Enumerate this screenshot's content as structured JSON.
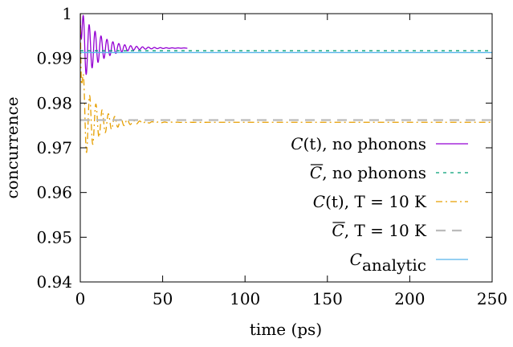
{
  "chart_data": {
    "type": "line",
    "xlabel": "time (ps)",
    "ylabel": "concurrence",
    "xlim": [
      0,
      250
    ],
    "ylim": [
      0.94,
      1.0
    ],
    "xticks": [
      "0",
      "50",
      "100",
      "150",
      "200",
      "250"
    ],
    "yticks": [
      "0.94",
      "0.95",
      "0.96",
      "0.97",
      "0.98",
      "0.99",
      "1"
    ],
    "grid": false,
    "legend_position": "bottom-right",
    "series": [
      {
        "name": "C(t), no phonons",
        "kind": "oscillation",
        "color": "#9400d3",
        "dash": "solid",
        "start": 1.0,
        "steady": 0.9923,
        "amplitude": 0.0085,
        "period_ps": 3.6,
        "decay_ps": 11,
        "x_end": 65,
        "sample_points": [
          {
            "x": 0,
            "y": 1.0
          },
          {
            "x": 8,
            "y": 0.9985
          },
          {
            "x": 20,
            "y": 0.9932
          },
          {
            "x": 40,
            "y": 0.9924
          },
          {
            "x": 65,
            "y": 0.9923
          }
        ]
      },
      {
        "name": "C̄, no phonons",
        "kind": "constant",
        "color": "#009e73",
        "dash": "4,5",
        "value": 0.9917
      },
      {
        "name": "C(t), T = 10 K",
        "kind": "oscillation",
        "color": "#e69f00",
        "dash": "8,4,2,4",
        "start": 1.0,
        "steady": 0.9757,
        "amplitude": 0.0105,
        "period_ps": 3.8,
        "decay_ps": 10,
        "x_end": 250,
        "sample_points": [
          {
            "x": 0,
            "y": 1.0
          },
          {
            "x": 5,
            "y": 0.968
          },
          {
            "x": 10,
            "y": 0.983
          },
          {
            "x": 30,
            "y": 0.9765
          },
          {
            "x": 250,
            "y": 0.9757
          }
        ]
      },
      {
        "name": "C̄, T = 10 K",
        "kind": "constant",
        "color": "#bbbbbb",
        "dash": "12,8",
        "value": 0.9762
      },
      {
        "name": "C_analytic",
        "kind": "constant",
        "color": "#56b4e9",
        "dash": "solid",
        "value": 0.9913
      }
    ],
    "legend_labels": [
      {
        "main": "C",
        "arg": "(t)",
        "rest": ", no phonons",
        "bar": false
      },
      {
        "main": "C",
        "arg": "",
        "rest": ", no phonons",
        "bar": true
      },
      {
        "main": "C",
        "arg": "(t)",
        "rest": ", T = 10 K",
        "bar": false
      },
      {
        "main": "C",
        "arg": "",
        "rest": ", T = 10 K",
        "bar": true
      },
      {
        "main": "C",
        "arg": "",
        "sub": "analytic",
        "rest": "",
        "bar": false
      }
    ]
  }
}
